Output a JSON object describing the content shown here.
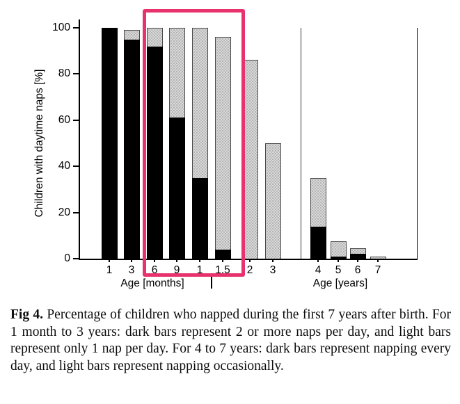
{
  "figure_caption": {
    "label": "Fig 4.",
    "text": "Percentage of children who napped during the first 7 years after birth. For 1 month to 3 years: dark bars represent 2 or more naps per day, and light bars represent only 1 nap per day. For 4 to 7 years: dark bars represent napping every day, and light bars represent napping occasionally."
  },
  "chart_data": {
    "type": "bar",
    "stacked": true,
    "title": "",
    "ylabel": "Children with daytime naps [%]",
    "ylim": [
      0,
      100
    ],
    "yticks": [
      0,
      20,
      40,
      60,
      80,
      100
    ],
    "grid": false,
    "legend_position": "none (series described in caption)",
    "x_axis_groups": [
      {
        "label": "Age [months]",
        "categories": [
          "1",
          "3",
          "6",
          "9"
        ]
      },
      {
        "label": "Age [years]",
        "categories": [
          "1",
          "1.5",
          "2",
          "3",
          "4",
          "5",
          "6",
          "7"
        ]
      }
    ],
    "series": [
      {
        "name": "dark bars",
        "meaning_1mo_to_3yr": "2 or more naps per day",
        "meaning_4_to_7yr": "napping every day"
      },
      {
        "name": "light bars",
        "meaning_1mo_to_3yr": "only 1 nap per day",
        "meaning_4_to_7yr": "napping occasionally"
      }
    ],
    "bars": [
      {
        "x": "1",
        "dark": 100,
        "light": 0,
        "total": 100
      },
      {
        "x": "3",
        "dark": 95,
        "light": 4,
        "total": 99
      },
      {
        "x": "6",
        "dark": 92,
        "light": 8,
        "total": 100
      },
      {
        "x": "9",
        "dark": 61,
        "light": 39,
        "total": 100
      },
      {
        "x": "1",
        "dark": 35,
        "light": 65,
        "total": 100
      },
      {
        "x": "1.5",
        "dark": 4,
        "light": 92,
        "total": 96
      },
      {
        "x": "2",
        "dark": 0,
        "light": 86,
        "total": 86
      },
      {
        "x": "3",
        "dark": 0,
        "light": 50,
        "total": 50
      },
      {
        "x": "4",
        "dark": 14,
        "light": 21,
        "total": 35
      },
      {
        "x": "5",
        "dark": 1,
        "light": 6.5,
        "total": 7.5
      },
      {
        "x": "6",
        "dark": 2,
        "light": 2.5,
        "total": 4.5
      },
      {
        "x": "7",
        "dark": 0,
        "light": 1,
        "total": 1
      }
    ],
    "colors": {
      "dark": "#000000",
      "light": "#d9d9d9"
    }
  },
  "annotation": {
    "type": "highlight-box",
    "color": "#e8326e",
    "covers_x_labels": [
      "6",
      "9",
      "1",
      "1.5"
    ]
  }
}
